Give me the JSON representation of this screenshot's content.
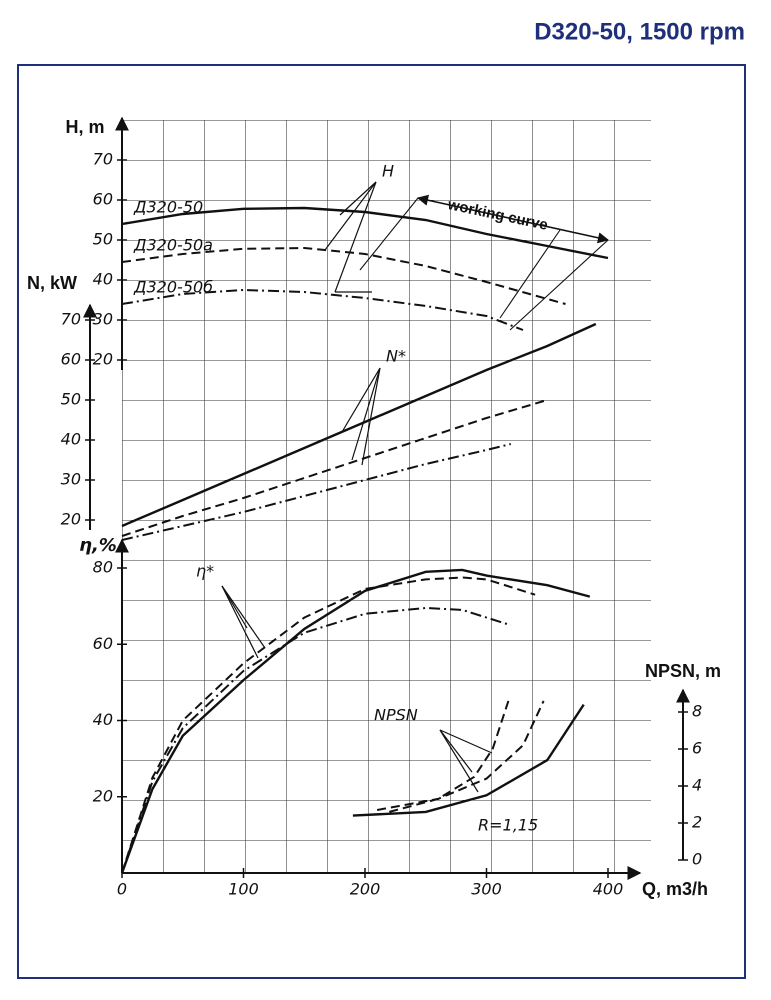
{
  "title": "D320-50, 1500 rpm",
  "chart_data": [
    {
      "type": "line",
      "y_label": "H, m",
      "xlim": [
        0,
        400
      ],
      "ylim": [
        20,
        80
      ],
      "yticks": [
        20,
        30,
        40,
        50,
        60,
        70
      ],
      "series": [
        {
          "name": "Д320-50",
          "dash": "solid",
          "color": "#111111",
          "x": [
            0,
            50,
            100,
            150,
            200,
            250,
            300,
            350,
            400
          ],
          "values": [
            54,
            56.5,
            57.8,
            58,
            57,
            55,
            51.5,
            48.5,
            45.5
          ]
        },
        {
          "name": "Д320-50а",
          "dash": "dashed",
          "color": "#111111",
          "x": [
            0,
            50,
            100,
            150,
            200,
            250,
            300,
            365
          ],
          "values": [
            44.5,
            46.5,
            47.8,
            48,
            46.5,
            43.5,
            39.5,
            34
          ]
        },
        {
          "name": "Д320-50б",
          "dash": "dashdot",
          "color": "#111111",
          "x": [
            0,
            50,
            100,
            150,
            200,
            250,
            300,
            330
          ],
          "values": [
            34,
            36.5,
            37.5,
            37,
            35.5,
            33.5,
            31,
            27.5
          ]
        }
      ],
      "annotations": [
        "H",
        "working curve"
      ]
    },
    {
      "type": "line",
      "y_label": "N, kW",
      "xlim": [
        0,
        400
      ],
      "ylim": [
        20,
        70
      ],
      "yticks": [
        20,
        30,
        40,
        50,
        60,
        70
      ],
      "series": [
        {
          "dash": "solid",
          "color": "#111111",
          "x": [
            0,
            50,
            100,
            150,
            200,
            250,
            300,
            350,
            390
          ],
          "values": [
            18.5,
            25,
            31.5,
            38,
            44.5,
            51,
            57.5,
            63.5,
            69
          ]
        },
        {
          "dash": "dashed",
          "color": "#111111",
          "x": [
            0,
            50,
            100,
            150,
            200,
            250,
            300,
            350
          ],
          "values": [
            16,
            21,
            25.5,
            30.5,
            35.5,
            40.5,
            45.5,
            50
          ]
        },
        {
          "dash": "dashdot",
          "color": "#111111",
          "x": [
            0,
            50,
            100,
            150,
            200,
            250,
            300,
            320
          ],
          "values": [
            15,
            18.5,
            22,
            26,
            30,
            34,
            37.5,
            39
          ]
        }
      ],
      "annotations": [
        "N*"
      ]
    },
    {
      "type": "line",
      "y_label": "η,%",
      "x_label": "Q, m3/h",
      "xlim": [
        0,
        400
      ],
      "xticks": [
        0,
        100,
        200,
        300,
        400
      ],
      "ylim": [
        0,
        80
      ],
      "yticks": [
        20,
        40,
        60,
        80
      ],
      "series": [
        {
          "dash": "solid",
          "color": "#111111",
          "x": [
            0,
            25,
            50,
            100,
            150,
            200,
            250,
            280,
            300,
            350,
            385
          ],
          "values": [
            0,
            22,
            36,
            50.6,
            64,
            74,
            79,
            79.5,
            78,
            75.5,
            72.5
          ]
        },
        {
          "dash": "dashed",
          "color": "#111111",
          "x": [
            0,
            25,
            50,
            100,
            150,
            200,
            250,
            280,
            300,
            340
          ],
          "values": [
            0,
            25,
            40,
            55,
            67,
            74.5,
            77,
            77.5,
            77,
            73
          ]
        },
        {
          "dash": "dashdot",
          "color": "#111111",
          "x": [
            0,
            25,
            50,
            100,
            150,
            200,
            250,
            280,
            320
          ],
          "values": [
            0,
            24,
            38,
            53,
            63,
            68,
            69.5,
            69,
            65
          ]
        }
      ],
      "annotations": [
        "η*"
      ]
    },
    {
      "type": "line",
      "y_label": "NPSN, m",
      "xlim": [
        0,
        400
      ],
      "ylim": [
        0,
        8
      ],
      "yticks": [
        0,
        2,
        4,
        6,
        8
      ],
      "series": [
        {
          "dash": "solid",
          "color": "#111111",
          "x": [
            190,
            250,
            300,
            350,
            380
          ],
          "values": [
            2.4,
            2.6,
            3.5,
            5.4,
            8.4
          ]
        },
        {
          "dash": "dashed",
          "color": "#111111",
          "x": [
            220,
            260,
            290,
            305,
            318
          ],
          "values": [
            2.6,
            3.3,
            4.5,
            6,
            8.6
          ]
        },
        {
          "dash": "dashed",
          "color": "#111111",
          "x": [
            210,
            260,
            300,
            330,
            347
          ],
          "values": [
            2.7,
            3.3,
            4.4,
            6.2,
            8.6
          ]
        }
      ],
      "annotations": [
        "NPSN",
        "R=1,15"
      ]
    }
  ]
}
